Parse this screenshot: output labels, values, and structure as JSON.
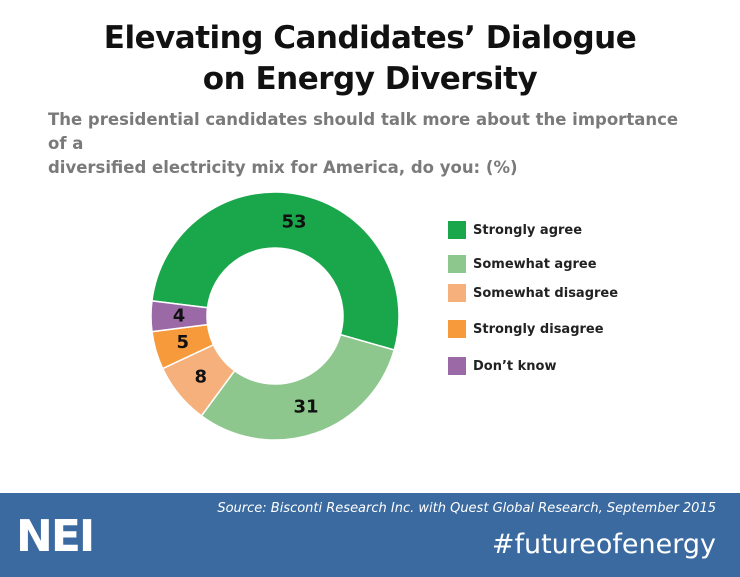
{
  "title": {
    "line1": "Elevating Candidates’ Dialogue",
    "line2": "on Energy Diversity"
  },
  "subtitle": {
    "line1": "The presidential candidates should talk more about the importance of a",
    "line2": "diversified electricity mix for America, do you: (%)"
  },
  "chart_data": {
    "type": "pie",
    "variant": "donut",
    "categories": [
      "Strongly agree",
      "Somewhat agree",
      "Somewhat disagree",
      "Strongly disagree",
      "Don’t know"
    ],
    "values": [
      53,
      31,
      8,
      5,
      4
    ],
    "data_labels": [
      "53",
      "31",
      "8",
      "5",
      "4"
    ],
    "colors": [
      "#1aa64a",
      "#8dc78d",
      "#f5b07c",
      "#f79a3c",
      "#9b6aa6"
    ],
    "legend_placement": "right",
    "start_angle_deg": 277,
    "direction": "clockwise"
  },
  "footer": {
    "source": "Source: Bisconti Research Inc. with Quest Global Research, September 2015",
    "logo": "NEI",
    "hashtag": "#futureofenergy",
    "background": "#3a6aa0"
  }
}
